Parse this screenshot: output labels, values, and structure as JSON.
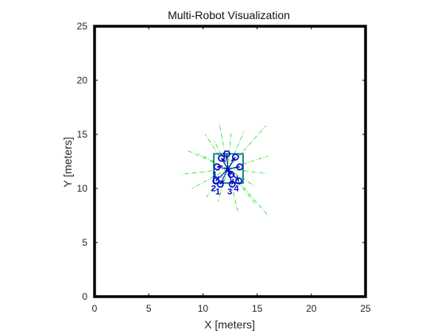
{
  "figure": {
    "title": "Multi-Robot Visualization"
  },
  "colors": {
    "frame": "#000000",
    "robot": "#0000cc",
    "robot_outline": "#008080",
    "sensor_rays": "#33dd33",
    "text": "#262626"
  },
  "chart_data": {
    "type": "scatter",
    "title": "Multi-Robot Visualization",
    "xlabel": "X [meters]",
    "ylabel": "Y [meters]",
    "xlim": [
      0,
      25
    ],
    "ylim": [
      0,
      25
    ],
    "xticks": [
      0,
      5,
      10,
      15,
      20,
      25
    ],
    "yticks": [
      0,
      5,
      10,
      15,
      20,
      25
    ],
    "grid": false,
    "box_outline": "thick black",
    "robots": [
      {
        "label": "1",
        "x": 11.6,
        "y": 10.4,
        "heading_deg": 45
      },
      {
        "label": "2",
        "x": 11.2,
        "y": 10.7,
        "heading_deg": 60
      },
      {
        "label": "3",
        "x": 12.7,
        "y": 10.4,
        "heading_deg": 80
      },
      {
        "label": "4",
        "x": 13.3,
        "y": 10.7,
        "heading_deg": 110
      },
      {
        "label": "1",
        "x": 11.3,
        "y": 12.0,
        "heading_deg": 10
      },
      {
        "label": "",
        "x": 12.2,
        "y": 13.2,
        "heading_deg": 270
      },
      {
        "label": "",
        "x": 13.0,
        "y": 12.9,
        "heading_deg": 225
      },
      {
        "label": "",
        "x": 13.4,
        "y": 12.0,
        "heading_deg": 190
      },
      {
        "label": "",
        "x": 11.7,
        "y": 12.8,
        "heading_deg": 320
      },
      {
        "label": "",
        "x": 12.6,
        "y": 11.3,
        "heading_deg": 135
      }
    ],
    "formation_square": {
      "x": [
        11.0,
        13.7
      ],
      "y": [
        10.5,
        13.2
      ]
    },
    "center": {
      "x": 12.3,
      "y": 11.8
    },
    "sensor_rays": [
      {
        "from": [
          12.3,
          11.8
        ],
        "to": [
          8.6,
          13.5
        ]
      },
      {
        "from": [
          12.3,
          11.8
        ],
        "to": [
          8.0,
          11.3
        ]
      },
      {
        "from": [
          12.3,
          11.8
        ],
        "to": [
          9.0,
          10.0
        ]
      },
      {
        "from": [
          12.3,
          11.8
        ],
        "to": [
          10.3,
          9.2
        ]
      },
      {
        "from": [
          12.3,
          11.8
        ],
        "to": [
          11.0,
          14.5
        ]
      },
      {
        "from": [
          12.3,
          11.8
        ],
        "to": [
          11.5,
          16.0
        ]
      },
      {
        "from": [
          12.3,
          11.8
        ],
        "to": [
          12.6,
          15.2
        ]
      },
      {
        "from": [
          12.3,
          11.8
        ],
        "to": [
          13.8,
          15.3
        ]
      },
      {
        "from": [
          12.3,
          11.8
        ],
        "to": [
          15.8,
          15.8
        ]
      },
      {
        "from": [
          12.3,
          11.8
        ],
        "to": [
          16.0,
          13.0
        ]
      },
      {
        "from": [
          12.3,
          11.8
        ],
        "to": [
          15.8,
          11.4
        ]
      },
      {
        "from": [
          12.3,
          11.8
        ],
        "to": [
          16.0,
          7.5
        ]
      },
      {
        "from": [
          12.3,
          11.8
        ],
        "to": [
          14.8,
          8.6
        ]
      },
      {
        "from": [
          12.3,
          11.8
        ],
        "to": [
          13.2,
          7.9
        ]
      },
      {
        "from": [
          12.3,
          11.8
        ],
        "to": [
          11.4,
          8.8
        ]
      },
      {
        "from": [
          12.3,
          11.8
        ],
        "to": [
          9.6,
          13.2
        ]
      },
      {
        "from": [
          12.3,
          11.8
        ],
        "to": [
          14.8,
          10.2
        ]
      },
      {
        "from": [
          12.3,
          11.8
        ],
        "to": [
          10.2,
          15.0
        ]
      }
    ]
  }
}
